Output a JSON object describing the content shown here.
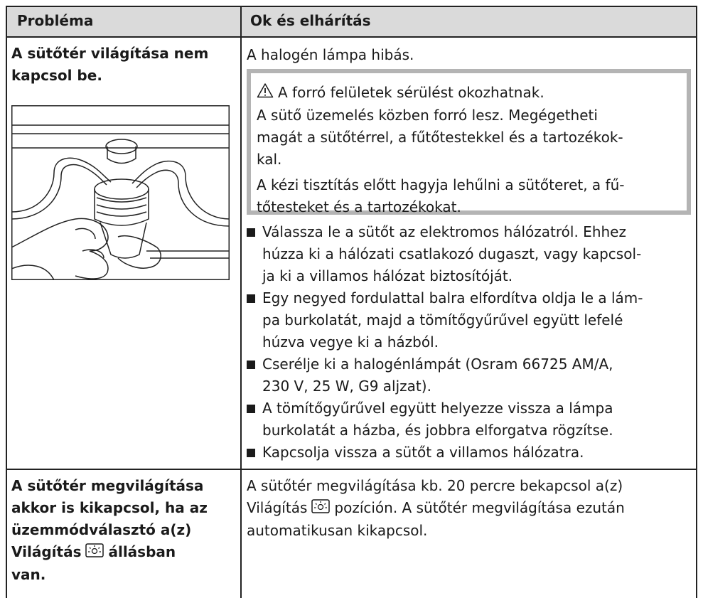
{
  "header": {
    "col1": "Probléma",
    "col2": "Ok és elhárítás"
  },
  "rows": [
    {
      "problem": [
        "A sütőtér világítása nem",
        "kapcsol be."
      ],
      "cause": "A halogén lámpa hibás.",
      "warning": {
        "title": "A forró felületek sérülést okozhatnak.",
        "lines": [
          "A sütő üzemelés közben forró lesz. Megégetheti",
          "magát a sütőtérrel, a fűtőtestekkel és a tartozékok-",
          "kal.",
          "A kézi tisztítás előtt hagyja lehűlni a sütőteret, a fű-",
          "tőtesteket és a tartozékokat."
        ]
      },
      "steps": [
        [
          "Válassza le a sütőt az elektromos hálózatról. Ehhez",
          "húzza ki a hálózati csatlakozó dugaszt, vagy kapcsol-",
          "ja ki a villamos hálózat biztosítóját."
        ],
        [
          "Egy negyed fordulattal balra elfordítva oldja le a lám-",
          "pa burkolatát, majd a tömítőgyűrűvel együtt lefelé",
          "húzva vegye ki a házból."
        ],
        [
          "Cserélje ki a halogénlámpát (Osram 66725 AM/A,",
          "230 V, 25 W, G9 aljzat)."
        ],
        [
          "A tömítőgyűrűvel együtt helyezze vissza a lámpa",
          "burkolatát a házba, és jobbra elforgatva rögzítse."
        ],
        [
          "Kapcsolja vissza a sütőt a villamos hálózatra."
        ]
      ]
    },
    {
      "problem": [
        "A sütőtér megvilágítása",
        "akkor is kikapcsol, ha az",
        "üzemmódválasztó a(z)",
        {
          "before": "Világítás",
          "after": "állásban"
        },
        "van."
      ],
      "cause_lines": [
        "A sütőtér megvilágítása kb. 20 percre bekapcsol a(z)",
        {
          "before": "Világítás",
          "after": "pozíción. A sütőtér megvilágítása ezután"
        },
        "automatikusan kikapcsol."
      ]
    }
  ]
}
